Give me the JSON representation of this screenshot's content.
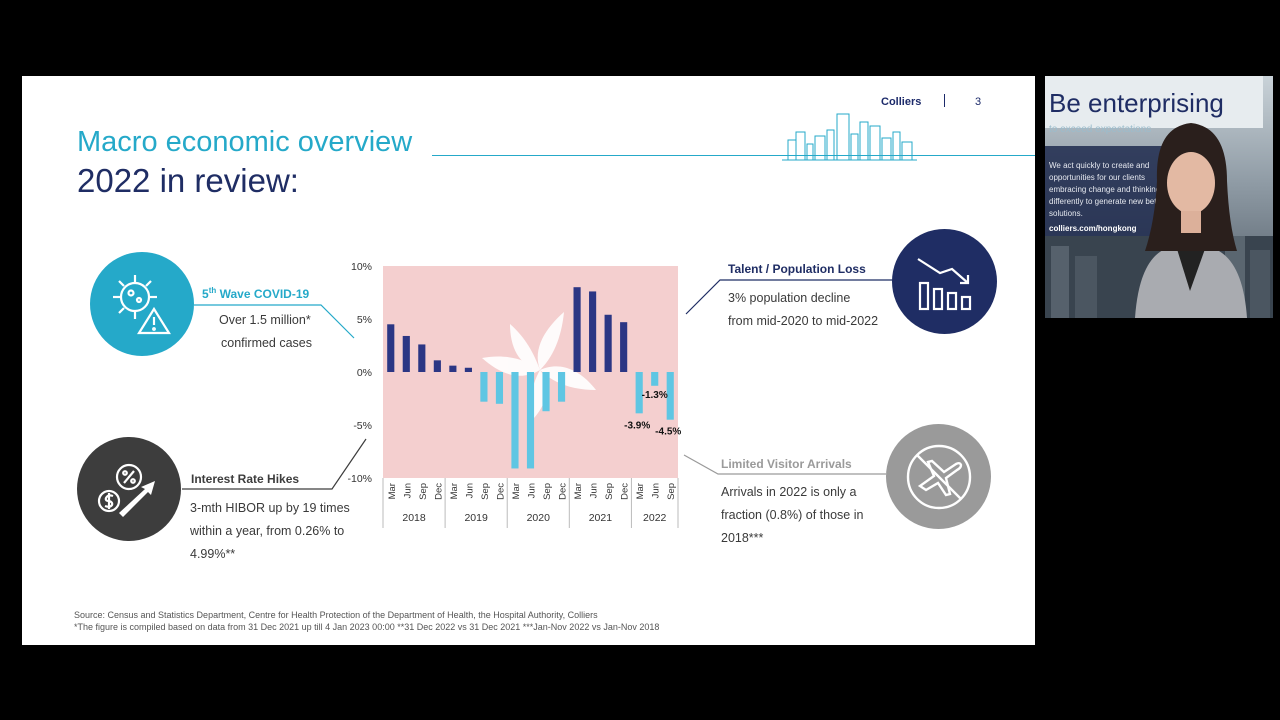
{
  "slide": {
    "brand": "Colliers",
    "page_number": "3",
    "title_line1": "Macro economic overview",
    "title_line2": "2022 in review:"
  },
  "covid": {
    "heading_sup": "th",
    "heading_pre": "5",
    "heading_rest": " Wave COVID-19",
    "body_line1": "Over 1.5 million*",
    "body_line2": "confirmed cases",
    "icon": "virus-warning-icon"
  },
  "interest": {
    "heading": "Interest Rate Hikes",
    "body_line1": "3-mth HIBOR up by 19 times",
    "body_line2": "within a year, from 0.26% to",
    "body_line3": "4.99%**",
    "icon": "interest-rate-icon"
  },
  "talent": {
    "heading": "Talent / Population Loss",
    "body_line1": "3% population decline",
    "body_line2": "from mid-2020 to mid-2022",
    "icon": "declining-chart-icon"
  },
  "visitor": {
    "heading": "Limited Visitor Arrivals",
    "body_line1": "Arrivals in 2022 is only a",
    "body_line2": "fraction (0.8%) of those in",
    "body_line3": "2018***",
    "icon": "no-flight-icon"
  },
  "footnotes": {
    "source": "Source: Census and Statistics Department, Centre for Health Protection of the Department of Health, the Hospital Authority, Colliers",
    "notes": "*The figure is compiled based on data from 31 Dec 2021 up till 4 Jan 2023 00:00  **31 Dec 2022 vs 31 Dec 2021  ***Jan-Nov 2022 vs Jan-Nov 2018"
  },
  "video": {
    "headline": "Be enterprising",
    "subline": "to exceed expectations",
    "body": "We act quickly to create and opportunities for our clients embracing change and thinking differently to generate new better solutions.",
    "url": "colliers.com/hongkong"
  },
  "colors": {
    "teal": "#25a9c9",
    "navy": "#1f2d64",
    "chart_bg": "#f4cfcf",
    "bar_positive": "#2b3684",
    "bar_negative": "#5fc6e3",
    "grey": "#9a9a9a",
    "dark": "#3d3d3d"
  },
  "chart_data": {
    "type": "bar",
    "categories": [
      "Mar",
      "Jun",
      "Sep",
      "Dec",
      "Mar",
      "Jun",
      "Sep",
      "Dec",
      "Mar",
      "Jun",
      "Sep",
      "Dec",
      "Mar",
      "Jun",
      "Sep",
      "Dec",
      "Mar",
      "Jun",
      "Sep"
    ],
    "groups": [
      {
        "label": "2018",
        "count": 4
      },
      {
        "label": "2019",
        "count": 4
      },
      {
        "label": "2020",
        "count": 4
      },
      {
        "label": "2021",
        "count": 4
      },
      {
        "label": "2022",
        "count": 3
      }
    ],
    "values": [
      4.5,
      3.4,
      2.6,
      1.1,
      0.6,
      0.4,
      -2.8,
      -3.0,
      -9.1,
      -9.1,
      -3.7,
      -2.8,
      8.0,
      7.6,
      5.4,
      4.7,
      -3.9,
      -1.3,
      -4.5
    ],
    "data_labels": [
      {
        "index": 16,
        "text": "-3.9%"
      },
      {
        "index": 17,
        "text": "-1.3%"
      },
      {
        "index": 18,
        "text": "-4.5%"
      }
    ],
    "yticks": [
      "10%",
      "5%",
      "0%",
      "-5%",
      "-10%"
    ],
    "ylim": [
      -10,
      10
    ],
    "grid": false,
    "legend": "none"
  }
}
